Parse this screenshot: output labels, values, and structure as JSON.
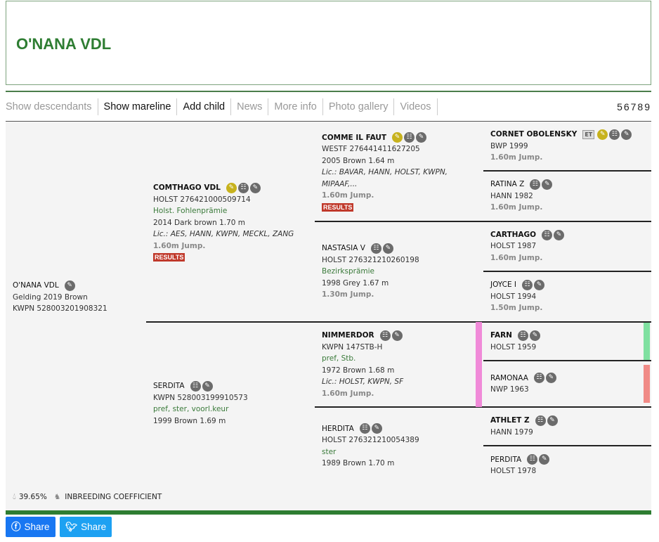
{
  "title": "O'NANA VDL",
  "nav": {
    "items": [
      {
        "label": "Show descendants",
        "active": false
      },
      {
        "label": "Show mareline",
        "active": true
      },
      {
        "label": "Add child",
        "active": true
      },
      {
        "label": "News",
        "active": false
      },
      {
        "label": "More info",
        "active": false
      },
      {
        "label": "Photo gallery",
        "active": false
      },
      {
        "label": "Videos",
        "active": false
      }
    ],
    "generations": "56789"
  },
  "results_label": "RESULTS",
  "horses": [
    {
      "id": "subject",
      "name": "O'NANA VDL",
      "bold": false,
      "icons": [
        "edit"
      ],
      "lines": [
        {
          "t": "Gelding 2019 Brown"
        },
        {
          "t": "KWPN 528003201908321"
        }
      ]
    },
    {
      "id": "sire",
      "name": "COMTHAGO VDL",
      "bold": true,
      "icons": [
        "gold",
        "pedigree",
        "edit"
      ],
      "lines": [
        {
          "t": "HOLST 276421000509714"
        },
        {
          "t": "Holst. Fohlenprämie",
          "k": "green"
        },
        {
          "t": "2014 Dark brown 1.70 m"
        },
        {
          "t": "Lic.: AES, HANN, KWPN, MECKL, ZANG",
          "k": "ital"
        },
        {
          "t": "1.60m Jump.",
          "k": "jump"
        }
      ],
      "results": true
    },
    {
      "id": "dam",
      "name": "SERDITA",
      "bold": false,
      "icons": [
        "pedigree",
        "edit"
      ],
      "lines": [
        {
          "t": "KWPN 528003199910573"
        },
        {
          "t": "pref, ster, voorl.keur",
          "k": "green"
        },
        {
          "t": "1999 Brown 1.69 m"
        }
      ]
    },
    {
      "id": "ss",
      "name": "COMME IL FAUT",
      "bold": true,
      "icons": [
        "gold",
        "pedigree",
        "edit"
      ],
      "lines": [
        {
          "t": "WESTF 276441411627205"
        },
        {
          "t": "2005 Brown 1.64 m"
        },
        {
          "t": "Lic.: BAVAR, HANN, HOLST, KWPN, MIPAAF,...",
          "k": "ital"
        },
        {
          "t": "1.60m Jump.",
          "k": "jump"
        }
      ],
      "results": true
    },
    {
      "id": "sd",
      "name": "NASTASIA V",
      "bold": false,
      "icons": [
        "pedigree",
        "edit"
      ],
      "lines": [
        {
          "t": "HOLST 276321210260198"
        },
        {
          "t": "Bezirksprämie",
          "k": "green"
        },
        {
          "t": "1998 Grey 1.67 m"
        },
        {
          "t": "1.30m Jump.",
          "k": "jump"
        }
      ]
    },
    {
      "id": "ds",
      "name": "NIMMERDOR",
      "bold": true,
      "icons": [
        "pedigree",
        "edit"
      ],
      "lines": [
        {
          "t": "KWPN 147STB-H"
        },
        {
          "t": "pref, Stb.",
          "k": "green"
        },
        {
          "t": "1972 Brown 1.68 m"
        },
        {
          "t": "Lic.: HOLST, KWPN, SF",
          "k": "ital"
        },
        {
          "t": "1.60m Jump.",
          "k": "jump"
        }
      ],
      "marker": "#f08ad8"
    },
    {
      "id": "dd",
      "name": "HERDITA",
      "bold": false,
      "icons": [
        "pedigree",
        "edit"
      ],
      "lines": [
        {
          "t": "HOLST 276321210054389"
        },
        {
          "t": "ster",
          "k": "green"
        },
        {
          "t": "1989 Brown 1.70 m"
        }
      ]
    },
    {
      "id": "sss",
      "name": "CORNET OBOLENSKY",
      "bold": true,
      "badge": "ET",
      "icons": [
        "gold",
        "pedigree",
        "edit"
      ],
      "lines": [
        {
          "t": "BWP 1999"
        },
        {
          "t": "1.60m Jump.",
          "k": "jump"
        }
      ]
    },
    {
      "id": "ssd",
      "name": "RATINA Z",
      "bold": false,
      "icons": [
        "pedigree",
        "edit"
      ],
      "lines": [
        {
          "t": "HANN 1982"
        },
        {
          "t": "1.60m Jump.",
          "k": "jump"
        }
      ]
    },
    {
      "id": "sds",
      "name": "CARTHAGO",
      "bold": true,
      "icons": [
        "pedigree",
        "edit"
      ],
      "lines": [
        {
          "t": "HOLST 1987"
        },
        {
          "t": "1.60m Jump.",
          "k": "jump"
        }
      ]
    },
    {
      "id": "sdd",
      "name": "JOYCE I",
      "bold": false,
      "icons": [
        "pedigree",
        "edit"
      ],
      "lines": [
        {
          "t": "HOLST 1994"
        },
        {
          "t": "1.50m Jump.",
          "k": "jump"
        }
      ]
    },
    {
      "id": "dss",
      "name": "FARN",
      "bold": true,
      "icons": [
        "pedigree",
        "edit"
      ],
      "lines": [
        {
          "t": "HOLST 1959"
        }
      ],
      "marker": "#7fe0a0"
    },
    {
      "id": "dsd",
      "name": "RAMONAA",
      "bold": false,
      "icons": [
        "pedigree",
        "edit"
      ],
      "lines": [
        {
          "t": "NWP 1963"
        }
      ],
      "marker": "#f08a86"
    },
    {
      "id": "dds",
      "name": "ATHLET Z",
      "bold": true,
      "icons": [
        "pedigree",
        "edit"
      ],
      "lines": [
        {
          "t": "HANN 1979"
        }
      ]
    },
    {
      "id": "ddd",
      "name": "PERDITA",
      "bold": false,
      "icons": [
        "pedigree",
        "edit"
      ],
      "lines": [
        {
          "t": "HOLST 1978"
        }
      ]
    }
  ],
  "inbreeding": {
    "value": "39.65%",
    "label": "INBREEDING COEFFICIENT"
  },
  "share": [
    {
      "label": "Share",
      "network": "facebook",
      "color": "#1877f2"
    },
    {
      "label": "Share",
      "network": "twitter",
      "color": "#1da1f2"
    }
  ]
}
